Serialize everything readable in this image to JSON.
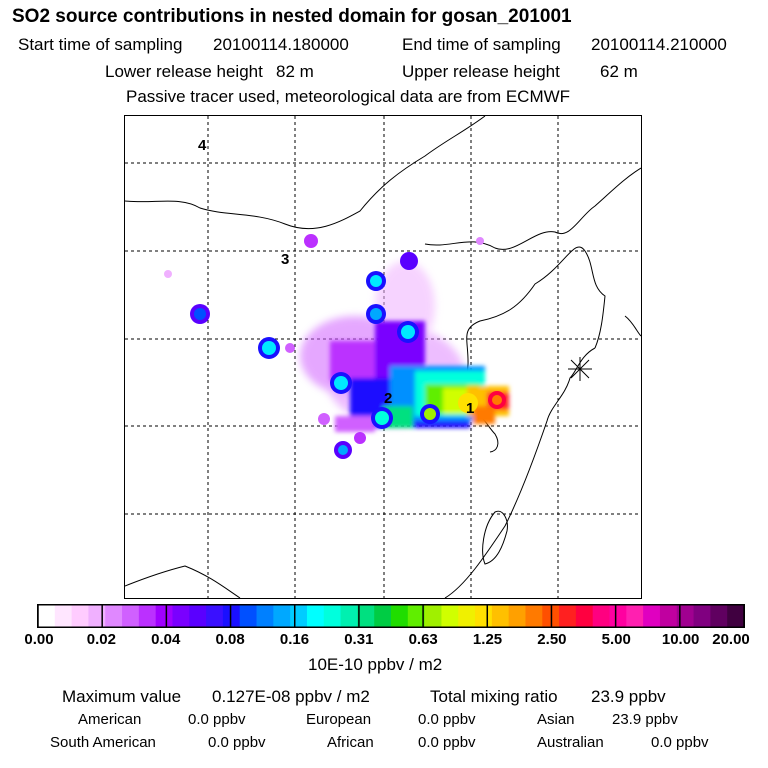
{
  "header": {
    "title": "SO2 source contributions in nested domain for gosan_201001",
    "start_label": "Start time of sampling",
    "start_value": "20100114.180000",
    "end_label": "End time of sampling",
    "end_value": "20100114.210000",
    "lower_label": "Lower release height",
    "lower_value": "82 m",
    "upper_label": "Upper release height",
    "upper_value": "62 m",
    "note": "Passive tracer used, meteorological data are from ECMWF"
  },
  "map": {
    "point_labels": [
      "4",
      "3",
      "2",
      "1"
    ],
    "receptor": "gosan",
    "colors": {
      "plume_blue": "#1a10ff",
      "plume_cyan": "#00e8ff",
      "plume_violet": "#9a00ff",
      "plume_yellow": "#e8ff00",
      "plume_red": "#ff1a1a",
      "plume_magenta": "#ff00aa"
    }
  },
  "colorbar": {
    "ticks": [
      "0.00",
      "0.02",
      "0.04",
      "0.08",
      "0.16",
      "0.31",
      "0.63",
      "1.25",
      "2.50",
      "5.00",
      "10.00",
      "20.00"
    ],
    "colors": [
      "#ffffff",
      "#ffe6ff",
      "#ffccff",
      "#f0b0ff",
      "#e088ff",
      "#d060ff",
      "#bb30ff",
      "#a000ff",
      "#7a00ff",
      "#5a00ff",
      "#3a10ff",
      "#1a10ff",
      "#0050ff",
      "#0080ff",
      "#00a8ff",
      "#00ccff",
      "#00ffff",
      "#00ffdd",
      "#00f0b0",
      "#00e080",
      "#00cc44",
      "#20dd00",
      "#60ee00",
      "#a0f000",
      "#d0ff00",
      "#f0f000",
      "#ffe000",
      "#ffc000",
      "#ffa000",
      "#ff7a00",
      "#ff5000",
      "#ff2020",
      "#ff0040",
      "#ff0080",
      "#ff00a0",
      "#ff20b0",
      "#e000c0",
      "#c000a0",
      "#a00090",
      "#800080",
      "#600060",
      "#400040"
    ],
    "unit": "10E-10 ppbv / m2"
  },
  "summary": {
    "max_label": "Maximum value",
    "max_value": "0.127E-08 ppbv / m2",
    "total_label": "Total mixing ratio",
    "total_value": "23.9 ppbv",
    "regions": [
      {
        "name": "American",
        "value": "0.0 ppbv"
      },
      {
        "name": "European",
        "value": "0.0 ppbv"
      },
      {
        "name": "Asian",
        "value": "23.9 ppbv"
      },
      {
        "name": "South American",
        "value": "0.0 ppbv"
      },
      {
        "name": "African",
        "value": "0.0 ppbv"
      },
      {
        "name": "Australian",
        "value": "0.0 ppbv"
      }
    ]
  }
}
